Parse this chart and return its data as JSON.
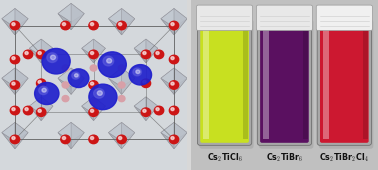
{
  "bg_color": "#d8d8d8",
  "left_bg": "#c8c8c8",
  "right_bg": "#c8c8c8",
  "figsize": [
    3.78,
    1.7
  ],
  "dpi": 100,
  "crystal": {
    "octa_color": "#c0c8d0",
    "octa_edge": "#909090",
    "line_color": "#606060",
    "red_atom_color": "#cc1515",
    "blue_atom_color": "#2020cc",
    "blue_highlight": "#5050ee",
    "small_pink_color": "#d0a0b0"
  },
  "vials": [
    {
      "label": "Cs$_2$TiCl$_6$",
      "liquid_color": "#c8e020",
      "liquid_color2": "#e0f060",
      "cap_color": "#e8e8e8",
      "bg_color": "#b8b8b8"
    },
    {
      "label": "Cs$_2$TiBr$_6$",
      "liquid_color": "#5a1060",
      "liquid_color2": "#7a2080",
      "cap_color": "#e8e8e8",
      "bg_color": "#a0a0a0"
    },
    {
      "label": "Cs$_2$TiBr$_2$Cl$_4$",
      "liquid_color": "#cc1830",
      "liquid_color2": "#e03050",
      "cap_color": "#f0f0f0",
      "bg_color": "#b0b0b0"
    }
  ]
}
